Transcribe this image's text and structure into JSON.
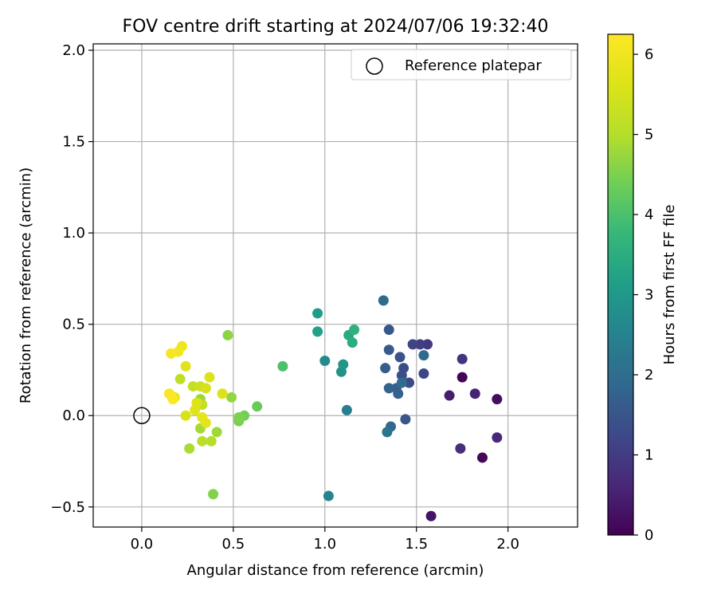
{
  "chart_data": {
    "type": "scatter",
    "title": "FOV centre drift starting at 2024/07/06 19:32:40",
    "xlabel": "Angular distance from reference (arcmin)",
    "ylabel": "Rotation from reference (arcmin)",
    "xlim": [
      -0.265,
      2.38
    ],
    "ylim": [
      -0.61,
      2.035
    ],
    "x_ticks": [
      0.0,
      0.5,
      1.0,
      1.5,
      2.0
    ],
    "x_tick_labels": [
      "0.0",
      "0.5",
      "1.0",
      "1.5",
      "2.0"
    ],
    "y_ticks": [
      -0.5,
      0.0,
      0.5,
      1.0,
      1.5,
      2.0
    ],
    "y_tick_labels": [
      "−0.5",
      "0.0",
      "0.5",
      "1.0",
      "1.5",
      "2.0"
    ],
    "grid": true,
    "legend": {
      "placement": "top-right",
      "entries": [
        "Reference platepar"
      ]
    },
    "reference_point": {
      "x": 0.0,
      "y": 0.0
    },
    "colorbar": {
      "label": "Hours from first FF file",
      "range": [
        0,
        6.25
      ],
      "ticks": [
        0,
        1,
        2,
        3,
        4,
        5,
        6
      ],
      "tick_labels": [
        "0",
        "1",
        "2",
        "3",
        "4",
        "5",
        "6"
      ],
      "colormap": "viridis"
    },
    "points": [
      {
        "x": 1.75,
        "y": 0.21,
        "c": 0.05
      },
      {
        "x": 1.86,
        "y": -0.23,
        "c": 0.1
      },
      {
        "x": 1.94,
        "y": 0.09,
        "c": 0.2
      },
      {
        "x": 1.58,
        "y": -0.55,
        "c": 0.3
      },
      {
        "x": 1.68,
        "y": 0.11,
        "c": 0.45
      },
      {
        "x": 1.82,
        "y": 0.12,
        "c": 0.55
      },
      {
        "x": 1.94,
        "y": -0.12,
        "c": 0.65
      },
      {
        "x": 1.74,
        "y": -0.18,
        "c": 0.75
      },
      {
        "x": 1.75,
        "y": 0.31,
        "c": 0.85
      },
      {
        "x": 1.56,
        "y": 0.39,
        "c": 0.95
      },
      {
        "x": 1.52,
        "y": 0.39,
        "c": 1.05
      },
      {
        "x": 1.48,
        "y": 0.39,
        "c": 1.15
      },
      {
        "x": 1.54,
        "y": 0.23,
        "c": 1.2
      },
      {
        "x": 1.46,
        "y": 0.18,
        "c": 1.3
      },
      {
        "x": 1.43,
        "y": 0.26,
        "c": 1.35
      },
      {
        "x": 1.42,
        "y": 0.22,
        "c": 1.4
      },
      {
        "x": 1.41,
        "y": 0.32,
        "c": 1.45
      },
      {
        "x": 1.44,
        "y": -0.02,
        "c": 1.5
      },
      {
        "x": 1.35,
        "y": 0.47,
        "c": 1.55
      },
      {
        "x": 1.35,
        "y": 0.36,
        "c": 1.6
      },
      {
        "x": 1.33,
        "y": 0.26,
        "c": 1.65
      },
      {
        "x": 1.39,
        "y": 0.15,
        "c": 1.7
      },
      {
        "x": 1.4,
        "y": 0.12,
        "c": 1.75
      },
      {
        "x": 1.35,
        "y": 0.15,
        "c": 1.8
      },
      {
        "x": 1.36,
        "y": -0.06,
        "c": 1.85
      },
      {
        "x": 1.32,
        "y": 0.63,
        "c": 1.9
      },
      {
        "x": 1.54,
        "y": 0.33,
        "c": 1.95
      },
      {
        "x": 1.42,
        "y": 0.18,
        "c": 2.0
      },
      {
        "x": 1.34,
        "y": -0.09,
        "c": 2.15
      },
      {
        "x": 1.12,
        "y": 0.03,
        "c": 2.4
      },
      {
        "x": 1.02,
        "y": -0.44,
        "c": 2.55
      },
      {
        "x": 1.0,
        "y": 0.3,
        "c": 2.7
      },
      {
        "x": 1.09,
        "y": 0.24,
        "c": 2.85
      },
      {
        "x": 1.1,
        "y": 0.28,
        "c": 2.95
      },
      {
        "x": 0.96,
        "y": 0.56,
        "c": 3.1
      },
      {
        "x": 0.96,
        "y": 0.46,
        "c": 3.2
      },
      {
        "x": 1.13,
        "y": 0.44,
        "c": 3.4
      },
      {
        "x": 1.15,
        "y": 0.4,
        "c": 3.5
      },
      {
        "x": 1.16,
        "y": 0.47,
        "c": 3.6
      },
      {
        "x": 0.77,
        "y": 0.27,
        "c": 4.0
      },
      {
        "x": 0.63,
        "y": 0.05,
        "c": 4.3
      },
      {
        "x": 0.56,
        "y": 0.0,
        "c": 4.4
      },
      {
        "x": 0.53,
        "y": -0.03,
        "c": 4.45
      },
      {
        "x": 0.53,
        "y": -0.01,
        "c": 4.5
      },
      {
        "x": 0.39,
        "y": -0.43,
        "c": 4.55
      },
      {
        "x": 0.47,
        "y": 0.44,
        "c": 4.65
      },
      {
        "x": 0.49,
        "y": 0.1,
        "c": 4.7
      },
      {
        "x": 0.32,
        "y": 0.09,
        "c": 4.75
      },
      {
        "x": 0.41,
        "y": -0.09,
        "c": 4.8
      },
      {
        "x": 0.32,
        "y": -0.07,
        "c": 4.85
      },
      {
        "x": 0.26,
        "y": -0.18,
        "c": 4.9
      },
      {
        "x": 0.38,
        "y": -0.14,
        "c": 5.0
      },
      {
        "x": 0.33,
        "y": -0.14,
        "c": 5.1
      },
      {
        "x": 0.21,
        "y": 0.2,
        "c": 5.15
      },
      {
        "x": 0.33,
        "y": 0.06,
        "c": 5.2
      },
      {
        "x": 0.28,
        "y": 0.16,
        "c": 5.25
      },
      {
        "x": 0.32,
        "y": 0.16,
        "c": 5.35
      },
      {
        "x": 0.35,
        "y": 0.15,
        "c": 5.5
      },
      {
        "x": 0.24,
        "y": 0.0,
        "c": 5.55
      },
      {
        "x": 0.3,
        "y": 0.07,
        "c": 5.6
      },
      {
        "x": 0.29,
        "y": 0.03,
        "c": 5.7
      },
      {
        "x": 0.35,
        "y": -0.04,
        "c": 5.75
      },
      {
        "x": 0.33,
        "y": -0.01,
        "c": 5.8
      },
      {
        "x": 0.37,
        "y": 0.21,
        "c": 5.65
      },
      {
        "x": 0.44,
        "y": 0.12,
        "c": 5.6
      },
      {
        "x": 0.24,
        "y": 0.27,
        "c": 5.7
      },
      {
        "x": 0.18,
        "y": 0.1,
        "c": 5.8
      },
      {
        "x": 0.22,
        "y": 0.38,
        "c": 5.95
      },
      {
        "x": 0.2,
        "y": 0.35,
        "c": 6.05
      },
      {
        "x": 0.16,
        "y": 0.34,
        "c": 6.1
      },
      {
        "x": 0.15,
        "y": 0.12,
        "c": 6.15
      },
      {
        "x": 0.16,
        "y": 0.11,
        "c": 6.2
      },
      {
        "x": 0.17,
        "y": 0.09,
        "c": 6.22
      }
    ]
  }
}
